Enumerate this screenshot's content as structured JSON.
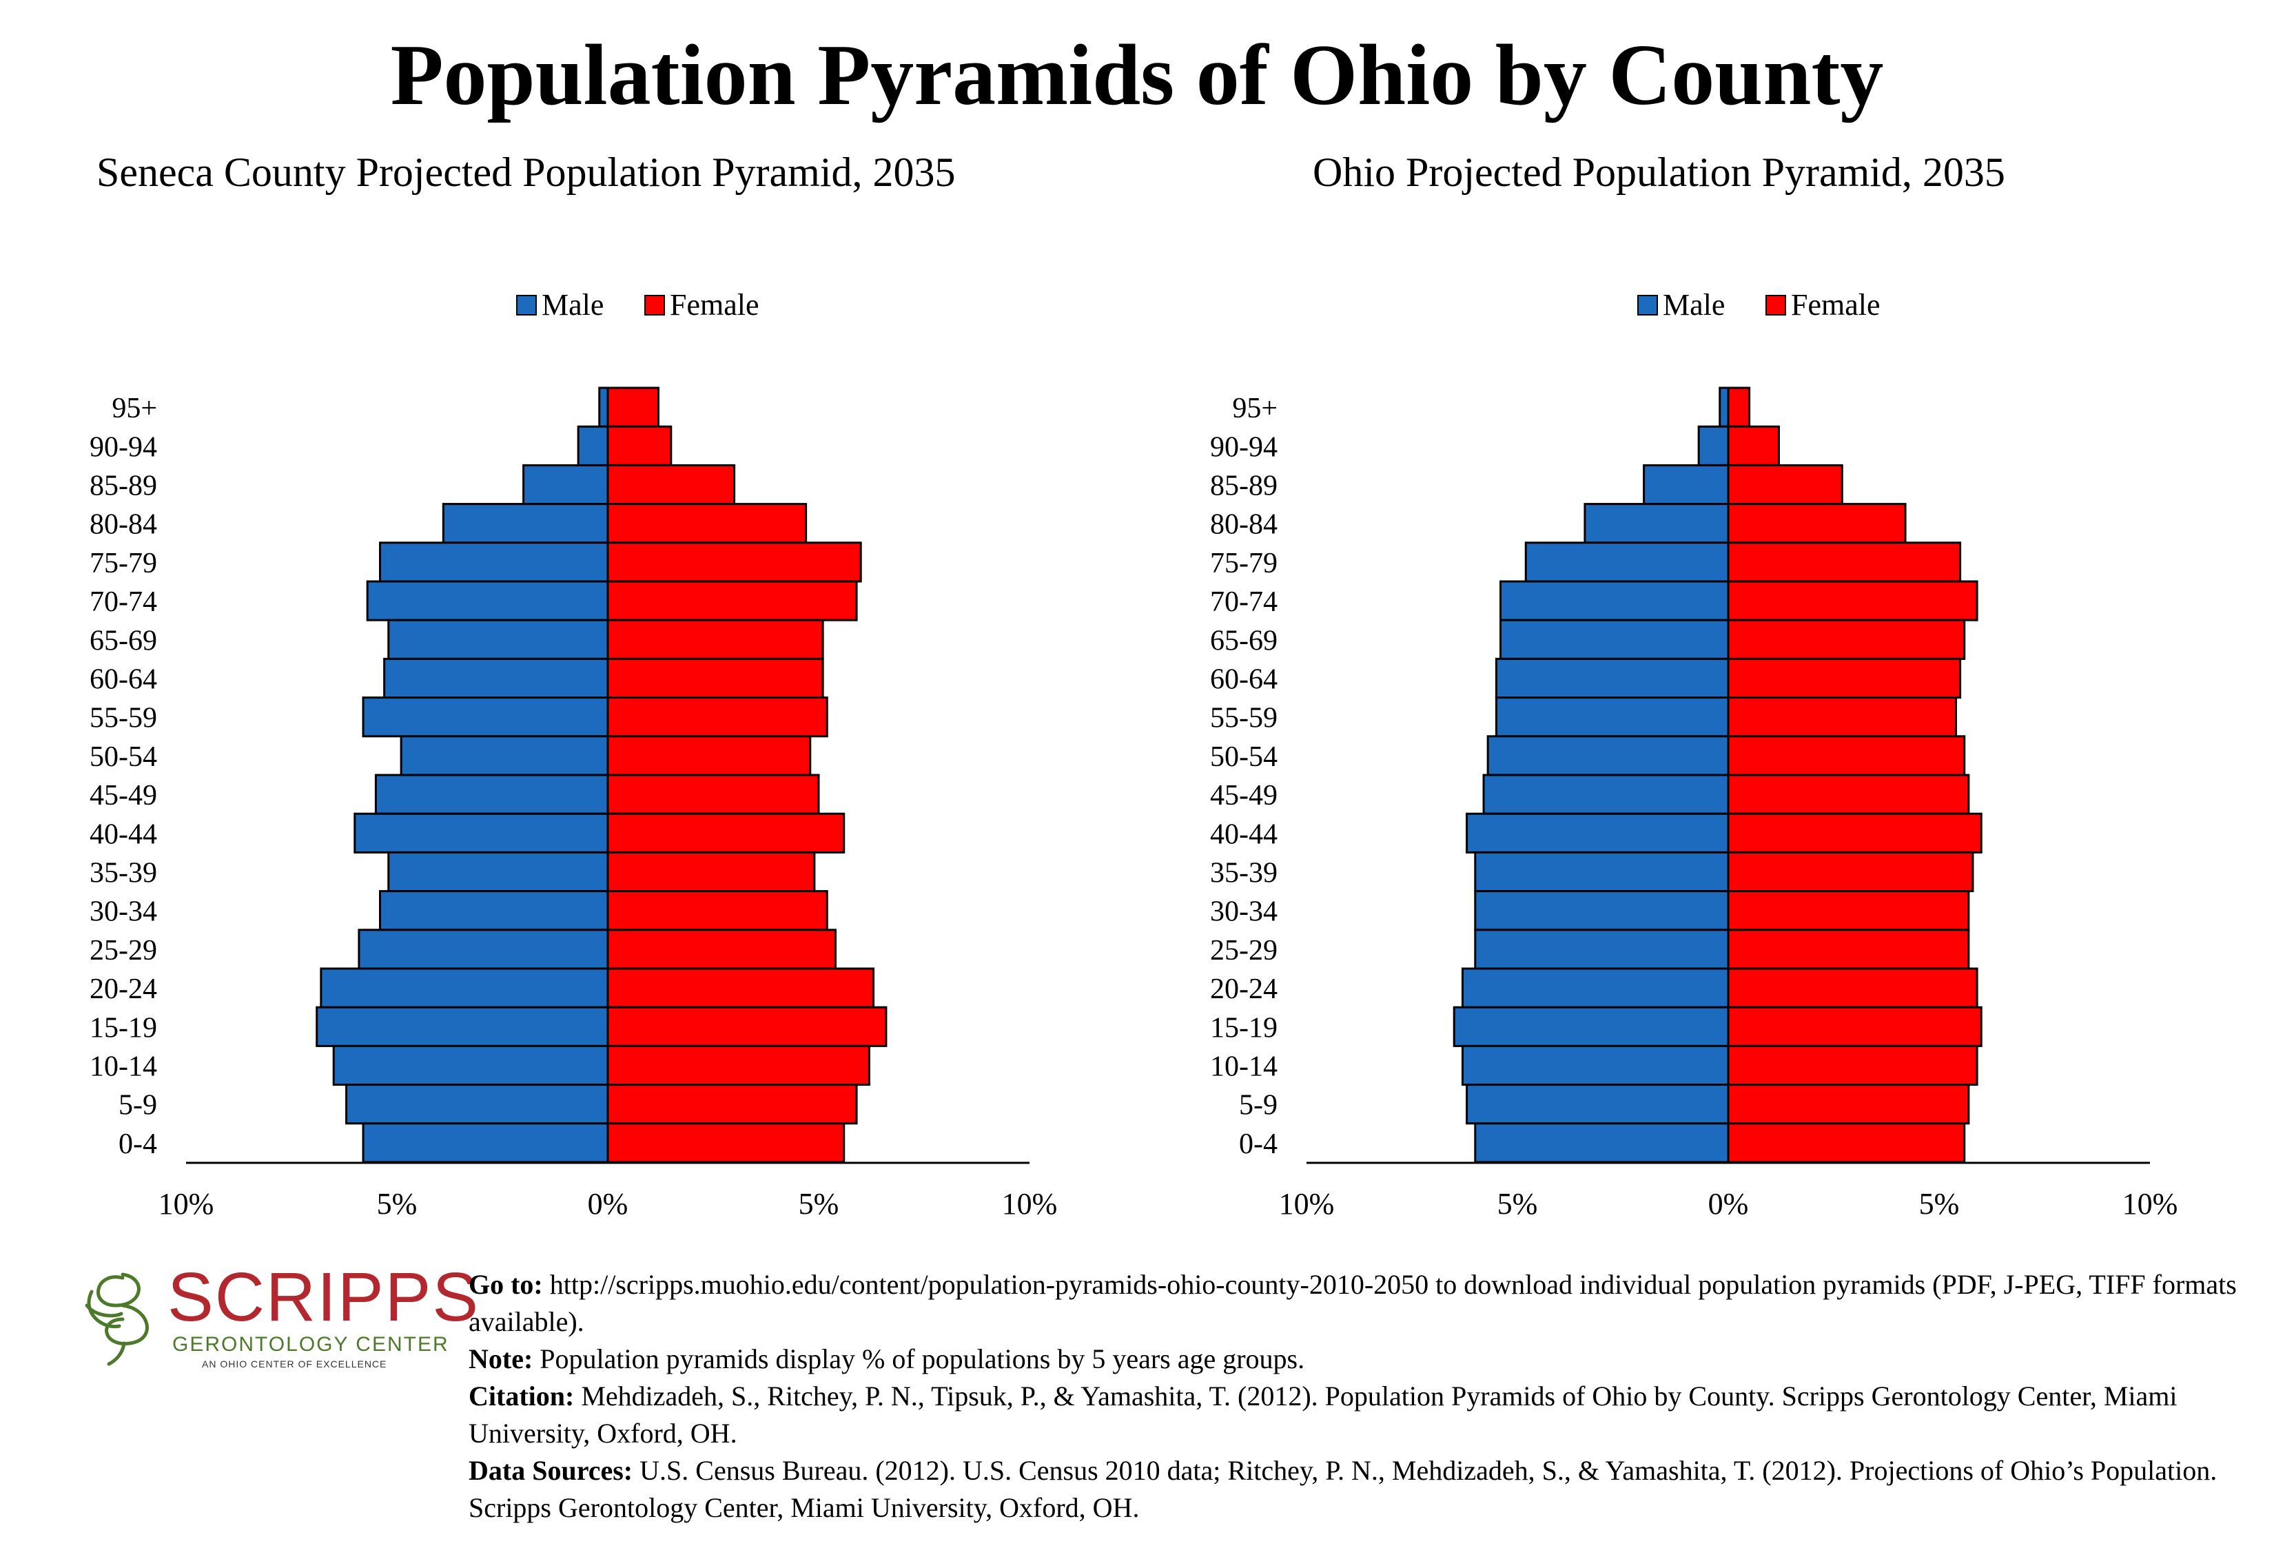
{
  "title": "Population Pyramids of Ohio by County",
  "colors": {
    "male": "#1d6bbf",
    "female": "#ff0000",
    "logo_red": "#b3282e",
    "logo_green": "#4d7a2a"
  },
  "chart_data": [
    {
      "type": "bar",
      "orientation": "horizontal-pyramid",
      "title": "Seneca County Projected Population Pyramid, 2035",
      "legend": {
        "position": "top-center",
        "entries": [
          "Male",
          "Female"
        ]
      },
      "categories": [
        "95+",
        "90-94",
        "85-89",
        "80-84",
        "75-79",
        "70-74",
        "65-69",
        "60-64",
        "55-59",
        "50-54",
        "45-49",
        "40-44",
        "35-39",
        "30-34",
        "25-29",
        "20-24",
        "15-19",
        "10-14",
        "5-9",
        "0-4"
      ],
      "series": [
        {
          "name": "Male",
          "values": [
            0.2,
            0.7,
            2.0,
            3.9,
            5.4,
            5.7,
            5.2,
            5.3,
            5.8,
            4.9,
            5.5,
            6.0,
            5.2,
            5.4,
            5.9,
            6.8,
            6.9,
            6.5,
            6.2,
            5.8
          ]
        },
        {
          "name": "Female",
          "values": [
            1.2,
            1.5,
            3.0,
            4.7,
            6.0,
            5.9,
            5.1,
            5.1,
            5.2,
            4.8,
            5.0,
            5.6,
            4.9,
            5.2,
            5.4,
            6.3,
            6.6,
            6.2,
            5.9,
            5.6
          ]
        }
      ],
      "xlim": [
        -10,
        10
      ],
      "xticks": [
        "10%",
        "5%",
        "0%",
        "5%",
        "10%"
      ],
      "xlabel": "",
      "ylabel": ""
    },
    {
      "type": "bar",
      "orientation": "horizontal-pyramid",
      "title": "Ohio Projected Population Pyramid, 2035",
      "legend": {
        "position": "top-center",
        "entries": [
          "Male",
          "Female"
        ]
      },
      "categories": [
        "95+",
        "90-94",
        "85-89",
        "80-84",
        "75-79",
        "70-74",
        "65-69",
        "60-64",
        "55-59",
        "50-54",
        "45-49",
        "40-44",
        "35-39",
        "30-34",
        "25-29",
        "20-24",
        "15-19",
        "10-14",
        "5-9",
        "0-4"
      ],
      "series": [
        {
          "name": "Male",
          "values": [
            0.2,
            0.7,
            2.0,
            3.4,
            4.8,
            5.4,
            5.4,
            5.5,
            5.5,
            5.7,
            5.8,
            6.2,
            6.0,
            6.0,
            6.0,
            6.3,
            6.5,
            6.3,
            6.2,
            6.0
          ]
        },
        {
          "name": "Female",
          "values": [
            0.5,
            1.2,
            2.7,
            4.2,
            5.5,
            5.9,
            5.6,
            5.5,
            5.4,
            5.6,
            5.7,
            6.0,
            5.8,
            5.7,
            5.7,
            5.9,
            6.0,
            5.9,
            5.7,
            5.6
          ]
        }
      ],
      "xlim": [
        -10,
        10
      ],
      "xticks": [
        "10%",
        "5%",
        "0%",
        "5%",
        "10%"
      ],
      "xlabel": "",
      "ylabel": ""
    }
  ],
  "logo": {
    "name": "SCRIPPS",
    "subtitle": "GERONTOLOGY CENTER",
    "tagline": "AN OHIO CENTER OF EXCELLENCE"
  },
  "footer": {
    "goto_label": "Go to:",
    "goto_text": " http://scripps.muohio.edu/content/population-pyramids-ohio-county-2010-2050 to download individual population pyramids (PDF, J-PEG, TIFF formats available).",
    "note_label": "Note:",
    "note_text": " Population pyramids display % of populations by 5 years age groups.",
    "citation_label": "Citation:",
    "citation_text": " Mehdizadeh, S., Ritchey, P. N., Tipsuk, P., & Yamashita, T. (2012). Population Pyramids of Ohio by County. Scripps Gerontology Center, Miami University, Oxford, OH.",
    "sources_label": "Data Sources:",
    "sources_text": " U.S. Census Bureau. (2012). U.S. Census 2010 data; Ritchey, P. N., Mehdizadeh, S., & Yamashita, T. (2012). Projections of Ohio’s Population. Scripps Gerontology Center, Miami University, Oxford, OH."
  }
}
